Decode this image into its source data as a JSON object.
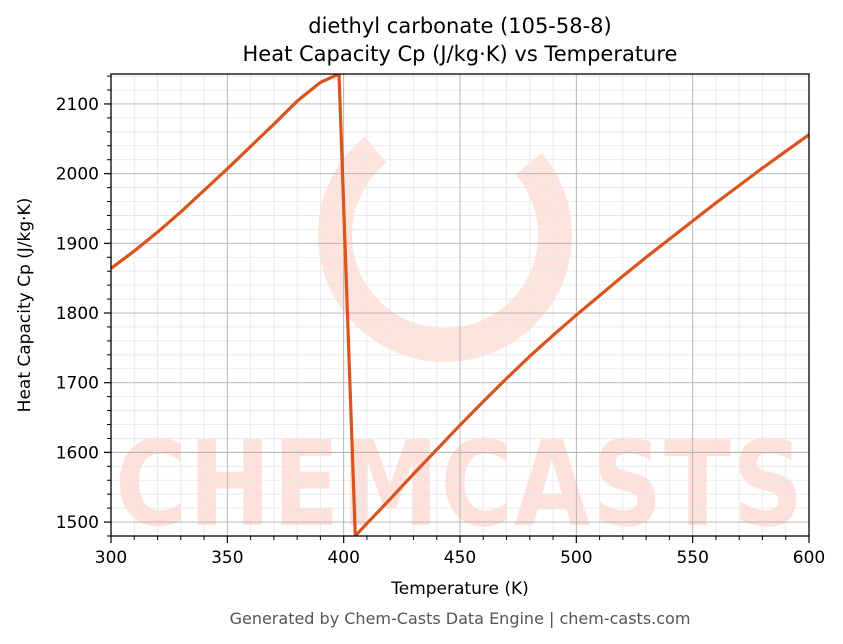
{
  "title_line1": "diethyl carbonate (105-58-8)",
  "title_line2": "Heat Capacity Cp (J/kg·K) vs Temperature",
  "footer": "Generated by Chem-Casts Data Engine | chem-casts.com",
  "watermark": "CHEMCASTS",
  "colors": {
    "line": "#d9541e",
    "grid_major": "#b0b0b0",
    "grid_minor": "#e6e6e6",
    "watermark": "#ffd8cf"
  },
  "chart_data": {
    "type": "line",
    "xlabel": "Temperature (K)",
    "ylabel": "Heat Capacity Cp (J/kg·K)",
    "xlim": [
      300,
      600
    ],
    "ylim": [
      1480,
      2143
    ],
    "xticks": [
      300,
      350,
      400,
      450,
      500,
      550,
      600
    ],
    "yticks": [
      1500,
      1600,
      1700,
      1800,
      1900,
      2000,
      2100
    ],
    "grid": true,
    "legend": "none",
    "series": [
      {
        "x": [
          300,
          310,
          320,
          330,
          340,
          350,
          360,
          370,
          380,
          390,
          398,
          405,
          410,
          420,
          430,
          440,
          450,
          460,
          470,
          480,
          490,
          500,
          510,
          520,
          530,
          540,
          550,
          560,
          570,
          580,
          590,
          600
        ],
        "values": [
          1864,
          1889,
          1916,
          1945,
          1976,
          2007,
          2039,
          2071,
          2104,
          2131,
          2143,
          1480,
          1498,
          1533,
          1569,
          1604,
          1639,
          1673,
          1706,
          1738,
          1768,
          1797,
          1825,
          1853,
          1880,
          1906,
          1932,
          1958,
          1983,
          2008,
          2032,
          2056
        ]
      }
    ]
  }
}
